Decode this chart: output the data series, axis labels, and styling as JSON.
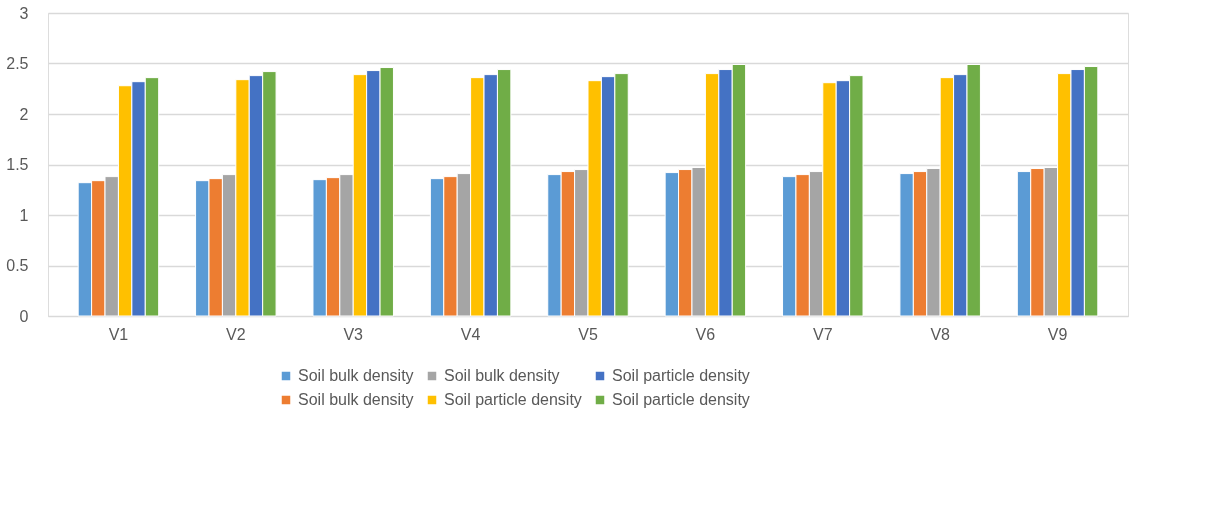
{
  "chart_data": {
    "type": "bar",
    "categories": [
      "V1",
      "V2",
      "V3",
      "V4",
      "V5",
      "V6",
      "V7",
      "V8",
      "V9"
    ],
    "series": [
      {
        "name": "Soil bulk density",
        "color": "#5b9bd5",
        "values": [
          1.32,
          1.34,
          1.35,
          1.36,
          1.4,
          1.42,
          1.38,
          1.41,
          1.43
        ]
      },
      {
        "name": "Soil bulk density",
        "color": "#ed7d31",
        "values": [
          1.34,
          1.36,
          1.37,
          1.38,
          1.43,
          1.45,
          1.4,
          1.43,
          1.46
        ]
      },
      {
        "name": "Soil bulk density",
        "color": "#a5a5a5",
        "values": [
          1.38,
          1.4,
          1.4,
          1.41,
          1.45,
          1.47,
          1.43,
          1.46,
          1.47
        ]
      },
      {
        "name": "Soil particle density",
        "color": "#ffc000",
        "values": [
          2.28,
          2.34,
          2.39,
          2.36,
          2.33,
          2.4,
          2.31,
          2.36,
          2.4
        ]
      },
      {
        "name": "Soil particle density",
        "color": "#4472c4",
        "values": [
          2.32,
          2.38,
          2.43,
          2.39,
          2.37,
          2.44,
          2.33,
          2.39,
          2.44
        ]
      },
      {
        "name": "Soil particle density",
        "color": "#70ad47",
        "values": [
          2.36,
          2.42,
          2.46,
          2.44,
          2.4,
          2.49,
          2.38,
          2.49,
          2.47
        ]
      }
    ],
    "ylim": [
      0,
      3
    ],
    "yticks": [
      0,
      0.5,
      1,
      1.5,
      2,
      2.5,
      3
    ],
    "grid": "y",
    "legend": "bottom"
  }
}
